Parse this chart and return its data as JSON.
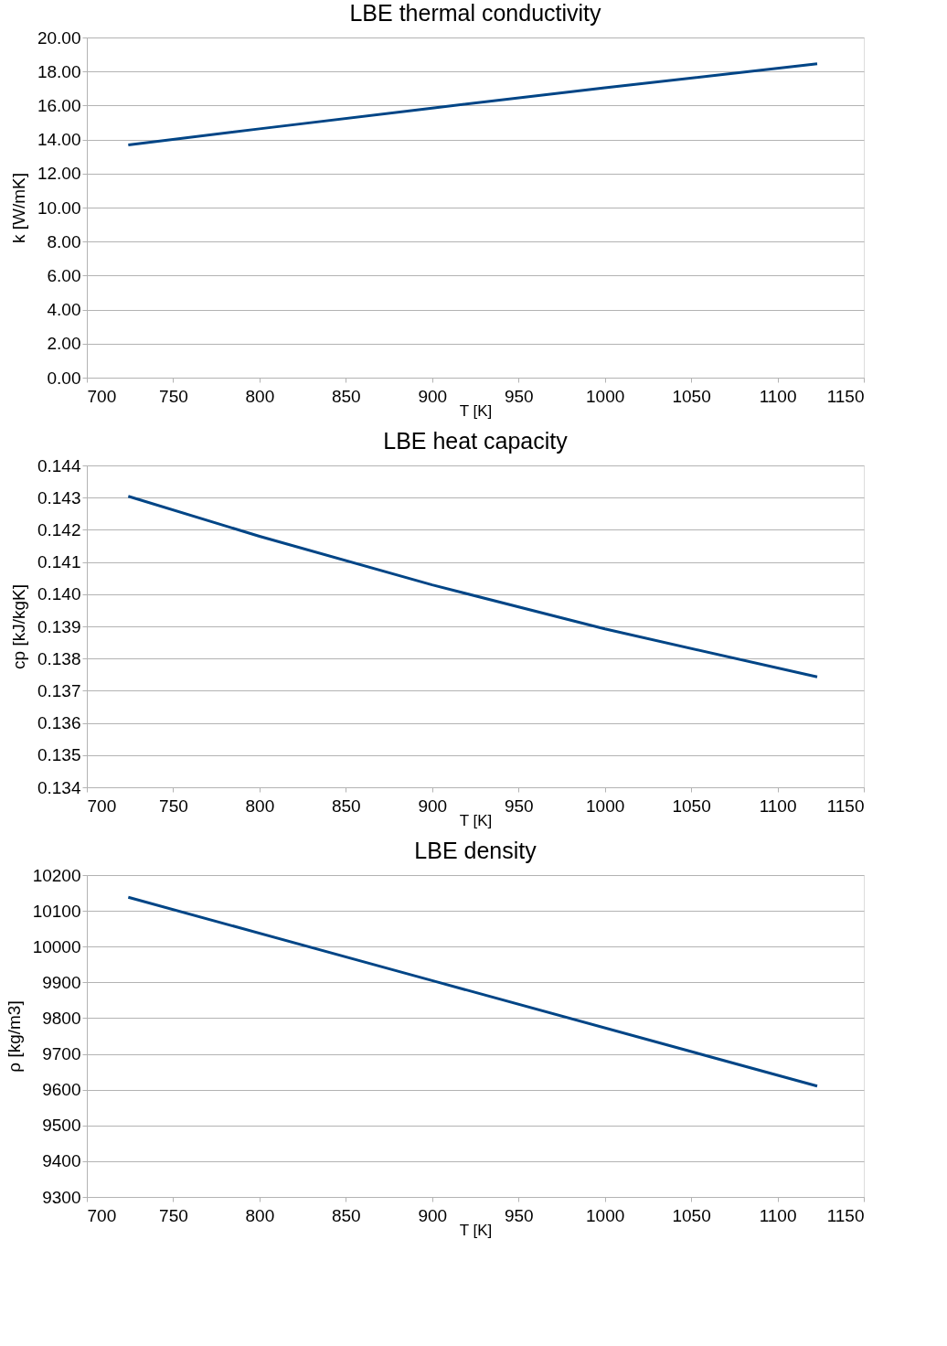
{
  "chart_data": [
    {
      "type": "line",
      "title": "LBE thermal conductivity",
      "xlabel": "T [K]",
      "ylabel": "k [W/mK]",
      "x": [
        724,
        800,
        900,
        1000,
        1123
      ],
      "series": [
        {
          "color": "#004586",
          "values": [
            13.68,
            14.63,
            15.85,
            17.04,
            18.45
          ]
        }
      ],
      "xlim": [
        700,
        1150
      ],
      "xticks": [
        700,
        750,
        800,
        850,
        900,
        950,
        1000,
        1050,
        1100,
        1150
      ],
      "ylim": [
        0,
        20
      ],
      "yticks": [
        {
          "value": 0,
          "label": "0.00"
        },
        {
          "value": 2,
          "label": "2.00"
        },
        {
          "value": 4,
          "label": "4.00"
        },
        {
          "value": 6,
          "label": "6.00"
        },
        {
          "value": 8,
          "label": "8.00"
        },
        {
          "value": 10,
          "label": "10.00"
        },
        {
          "value": 12,
          "label": "12.00"
        },
        {
          "value": 14,
          "label": "14.00"
        },
        {
          "value": 16,
          "label": "16.00"
        },
        {
          "value": 18,
          "label": "18.00"
        },
        {
          "value": 20,
          "label": "20.00"
        }
      ],
      "grid": "y",
      "marker": "none",
      "line_style": "solid"
    },
    {
      "type": "line",
      "title": "LBE  heat capacity",
      "xlabel": "T [K]",
      "ylabel": "cp [kJ/kgK]",
      "x": [
        724,
        800,
        900,
        1000,
        1123
      ],
      "series": [
        {
          "color": "#004586",
          "values": [
            0.14304,
            0.1418,
            0.14029,
            0.13892,
            0.13743
          ]
        }
      ],
      "xlim": [
        700,
        1150
      ],
      "xticks": [
        700,
        750,
        800,
        850,
        900,
        950,
        1000,
        1050,
        1100,
        1150
      ],
      "ylim": [
        0.134,
        0.144
      ],
      "yticks": [
        0.134,
        0.135,
        0.136,
        0.137,
        0.138,
        0.139,
        {
          "value": 0.14,
          "label": "0.140"
        },
        0.141,
        0.142,
        0.143,
        0.144
      ],
      "grid": "y",
      "marker": "none",
      "line_style": "solid"
    },
    {
      "type": "line",
      "title": "LBE  density",
      "xlabel": "T [K]",
      "ylabel": "ρ [kg/m3]",
      "x": [
        724,
        900,
        1123
      ],
      "series": [
        {
          "color": "#004586",
          "values": [
            10138,
            9905,
            9610
          ]
        }
      ],
      "xlim": [
        700,
        1150
      ],
      "xticks": [
        700,
        750,
        800,
        850,
        900,
        950,
        1000,
        1050,
        1100,
        1150
      ],
      "ylim": [
        9300,
        10200
      ],
      "yticks": [
        9300,
        9400,
        9500,
        9600,
        9700,
        9800,
        9900,
        10000,
        10100,
        10200
      ],
      "grid": "y",
      "marker": "none",
      "line_style": "solid"
    }
  ]
}
